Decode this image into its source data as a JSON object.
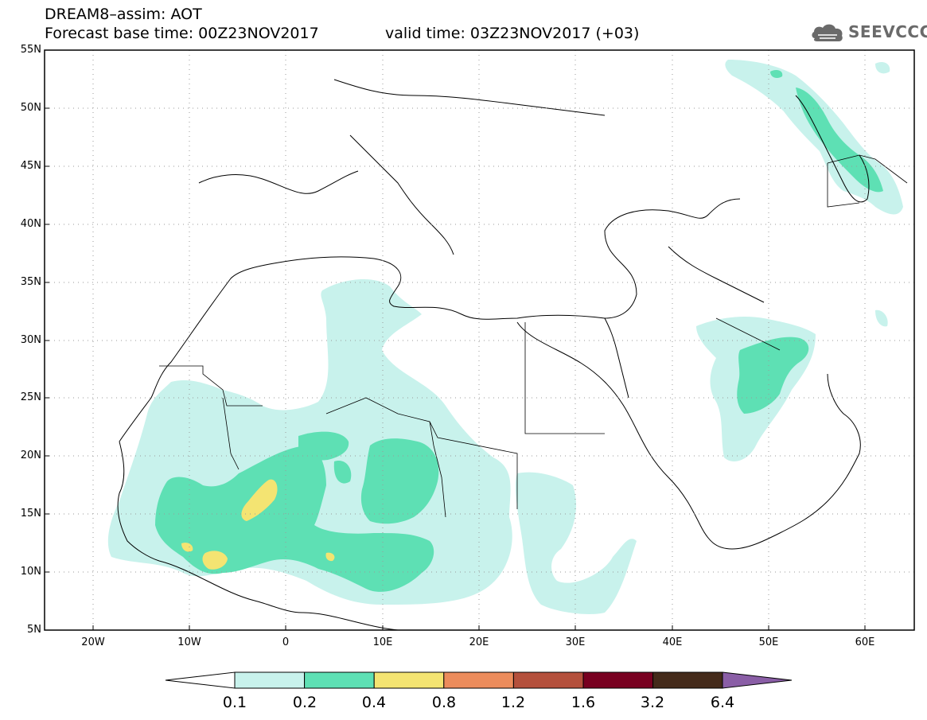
{
  "header": {
    "line1": "DREAM8–assim: AOT",
    "line2a": "Forecast base time: 00Z23NOV2017",
    "line2b": "valid time: 03Z23NOV2017 (+03)"
  },
  "logo": {
    "text": "SEEVCCC",
    "icon": "cloud-icon"
  },
  "map": {
    "extent": {
      "lon": [
        -25,
        65
      ],
      "lat": [
        5,
        55
      ]
    },
    "lat_labels": [
      "55N",
      "50N",
      "45N",
      "40N",
      "35N",
      "30N",
      "25N",
      "20N",
      "15N",
      "10N",
      "5N"
    ],
    "lon_labels": [
      "20W",
      "10W",
      "0",
      "10E",
      "20E",
      "30E",
      "40E",
      "50E",
      "60E"
    ],
    "grid": "dotted"
  },
  "colorbar": {
    "labels": [
      "0.1",
      "0.2",
      "0.4",
      "0.8",
      "1.2",
      "1.6",
      "3.2",
      "6.4"
    ],
    "colors": [
      "#c8f2ec",
      "#5ee0b4",
      "#f4e472",
      "#ec8c5c",
      "#b4503c",
      "#780020",
      "#442a1a",
      "#8a5ea6"
    ]
  }
}
